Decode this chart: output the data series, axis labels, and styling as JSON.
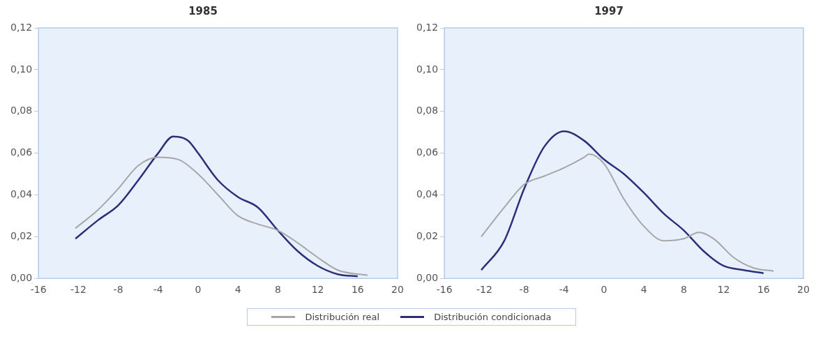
{
  "chart_data": [
    {
      "type": "line",
      "title": "1985",
      "xlim": [
        -16,
        20
      ],
      "xticks": [
        -16,
        -12,
        -8,
        -4,
        0,
        4,
        8,
        12,
        16,
        20
      ],
      "ylim": [
        0,
        0.12
      ],
      "yticks": [
        {
          "value": 0,
          "label": "0,00"
        },
        {
          "value": 0.02,
          "label": "0,02"
        },
        {
          "value": 0.04,
          "label": "0,04"
        },
        {
          "value": 0.06,
          "label": "0,06"
        },
        {
          "value": 0.08,
          "label": "0,08"
        },
        {
          "value": 0.1,
          "label": "0,10"
        },
        {
          "value": 0.12,
          "label": "0,12"
        }
      ],
      "grid": false,
      "legend": "bottom",
      "marker": "none",
      "series": [
        {
          "name": "Distribución real",
          "color": "#a6a6a6",
          "x": [
            -12.3,
            -10,
            -8,
            -6,
            -4,
            -2,
            0,
            2,
            4,
            6,
            8,
            10,
            12,
            14,
            17
          ],
          "values": [
            0.024,
            0.033,
            0.043,
            0.054,
            0.058,
            0.057,
            0.05,
            0.04,
            0.03,
            0.026,
            0.023,
            0.017,
            0.01,
            0.004,
            0.0015
          ]
        },
        {
          "name": "Distribución condicionada",
          "color": "#2b2f7a",
          "x": [
            -12.3,
            -10,
            -8,
            -6,
            -4,
            -2.5,
            -1,
            0,
            2,
            4,
            6,
            8,
            10,
            12,
            14,
            16
          ],
          "values": [
            0.019,
            0.028,
            0.035,
            0.047,
            0.06,
            0.068,
            0.066,
            0.06,
            0.047,
            0.039,
            0.034,
            0.023,
            0.013,
            0.006,
            0.002,
            0.001
          ]
        }
      ]
    },
    {
      "type": "line",
      "title": "1997",
      "xlim": [
        -16,
        20
      ],
      "xticks": [
        -16,
        -12,
        -8,
        -4,
        0,
        4,
        8,
        12,
        16,
        20
      ],
      "ylim": [
        0,
        0.12
      ],
      "yticks": [
        {
          "value": 0,
          "label": "0,00"
        },
        {
          "value": 0.02,
          "label": "0,02"
        },
        {
          "value": 0.04,
          "label": "0,04"
        },
        {
          "value": 0.06,
          "label": "0,06"
        },
        {
          "value": 0.08,
          "label": "0,08"
        },
        {
          "value": 0.1,
          "label": "0,10"
        },
        {
          "value": 0.12,
          "label": "0,12"
        }
      ],
      "grid": false,
      "marker": "none",
      "series": [
        {
          "color": "#a6a6a6",
          "x": [
            -12.3,
            -10,
            -8,
            -6,
            -4,
            -2,
            -1.5,
            0,
            2,
            4,
            6,
            8,
            9.5,
            11,
            13,
            15,
            17
          ],
          "values": [
            0.02,
            0.034,
            0.045,
            0.049,
            0.053,
            0.058,
            0.0595,
            0.055,
            0.038,
            0.025,
            0.018,
            0.019,
            0.022,
            0.019,
            0.01,
            0.005,
            0.0035
          ]
        },
        {
          "color": "#2b2f7a",
          "x": [
            -12.3,
            -10,
            -8,
            -6,
            -4,
            -2,
            0,
            2,
            4,
            6,
            8,
            10,
            12,
            14,
            16
          ],
          "values": [
            0.004,
            0.018,
            0.043,
            0.063,
            0.0705,
            0.066,
            0.057,
            0.05,
            0.041,
            0.031,
            0.023,
            0.013,
            0.006,
            0.004,
            0.0025
          ]
        }
      ]
    }
  ]
}
